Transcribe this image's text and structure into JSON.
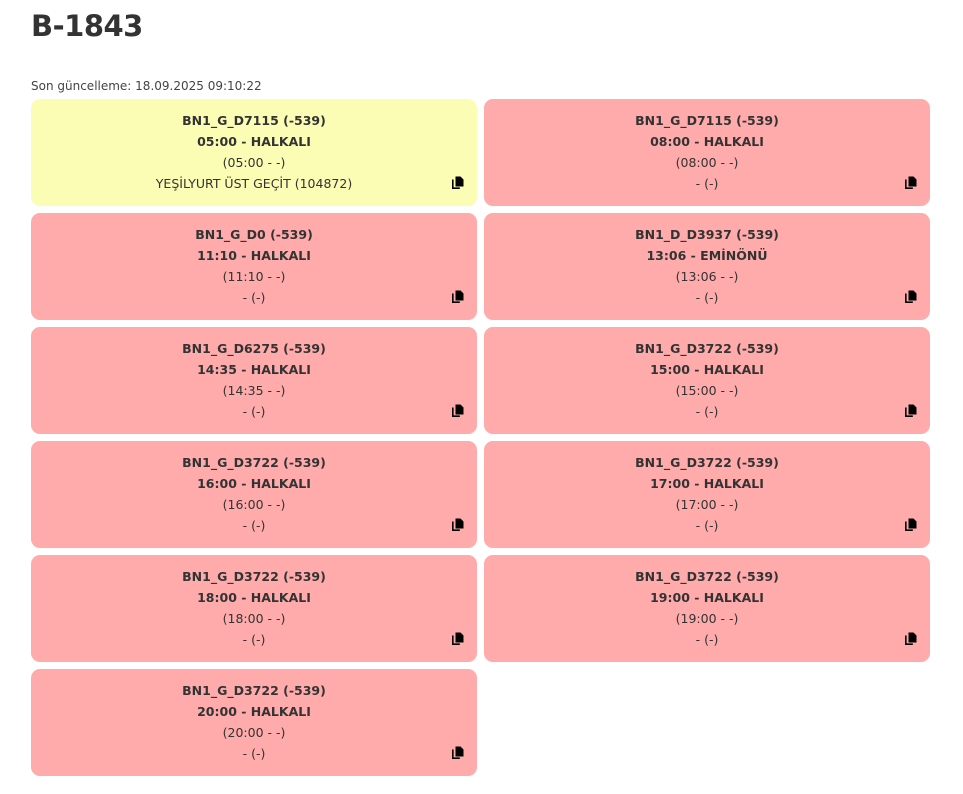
{
  "title": "B-1843",
  "last_update": "Son güncelleme: 18.09.2025 09:10:22",
  "colors": {
    "active": "#fcfdb5",
    "inactive": "#ffabab"
  },
  "cards": [
    {
      "line1": "BN1_G_D7115 (-539)",
      "line2": "05:00 - HALKALI",
      "line3": "(05:00 - -)",
      "line4": "YEŞİLYURT ÜST GEÇİT (104872)",
      "status": "active"
    },
    {
      "line1": "BN1_G_D7115 (-539)",
      "line2": "08:00 - HALKALI",
      "line3": "(08:00 - -)",
      "line4": "- (-)",
      "status": "inactive"
    },
    {
      "line1": "BN1_G_D0 (-539)",
      "line2": "11:10 - HALKALI",
      "line3": "(11:10 - -)",
      "line4": "- (-)",
      "status": "inactive"
    },
    {
      "line1": "BN1_D_D3937 (-539)",
      "line2": "13:06 - EMİNÖNÜ",
      "line3": "(13:06 - -)",
      "line4": "- (-)",
      "status": "inactive"
    },
    {
      "line1": "BN1_G_D6275 (-539)",
      "line2": "14:35 - HALKALI",
      "line3": "(14:35 - -)",
      "line4": "- (-)",
      "status": "inactive"
    },
    {
      "line1": "BN1_G_D3722 (-539)",
      "line2": "15:00 - HALKALI",
      "line3": "(15:00 - -)",
      "line4": "- (-)",
      "status": "inactive"
    },
    {
      "line1": "BN1_G_D3722 (-539)",
      "line2": "16:00 - HALKALI",
      "line3": "(16:00 - -)",
      "line4": "- (-)",
      "status": "inactive"
    },
    {
      "line1": "BN1_G_D3722 (-539)",
      "line2": "17:00 - HALKALI",
      "line3": "(17:00 - -)",
      "line4": "- (-)",
      "status": "inactive"
    },
    {
      "line1": "BN1_G_D3722 (-539)",
      "line2": "18:00 - HALKALI",
      "line3": "(18:00 - -)",
      "line4": "- (-)",
      "status": "inactive"
    },
    {
      "line1": "BN1_G_D3722 (-539)",
      "line2": "19:00 - HALKALI",
      "line3": "(19:00 - -)",
      "line4": "- (-)",
      "status": "inactive"
    },
    {
      "line1": "BN1_G_D3722 (-539)",
      "line2": "20:00 - HALKALI",
      "line3": "(20:00 - -)",
      "line4": "- (-)",
      "status": "inactive"
    }
  ]
}
